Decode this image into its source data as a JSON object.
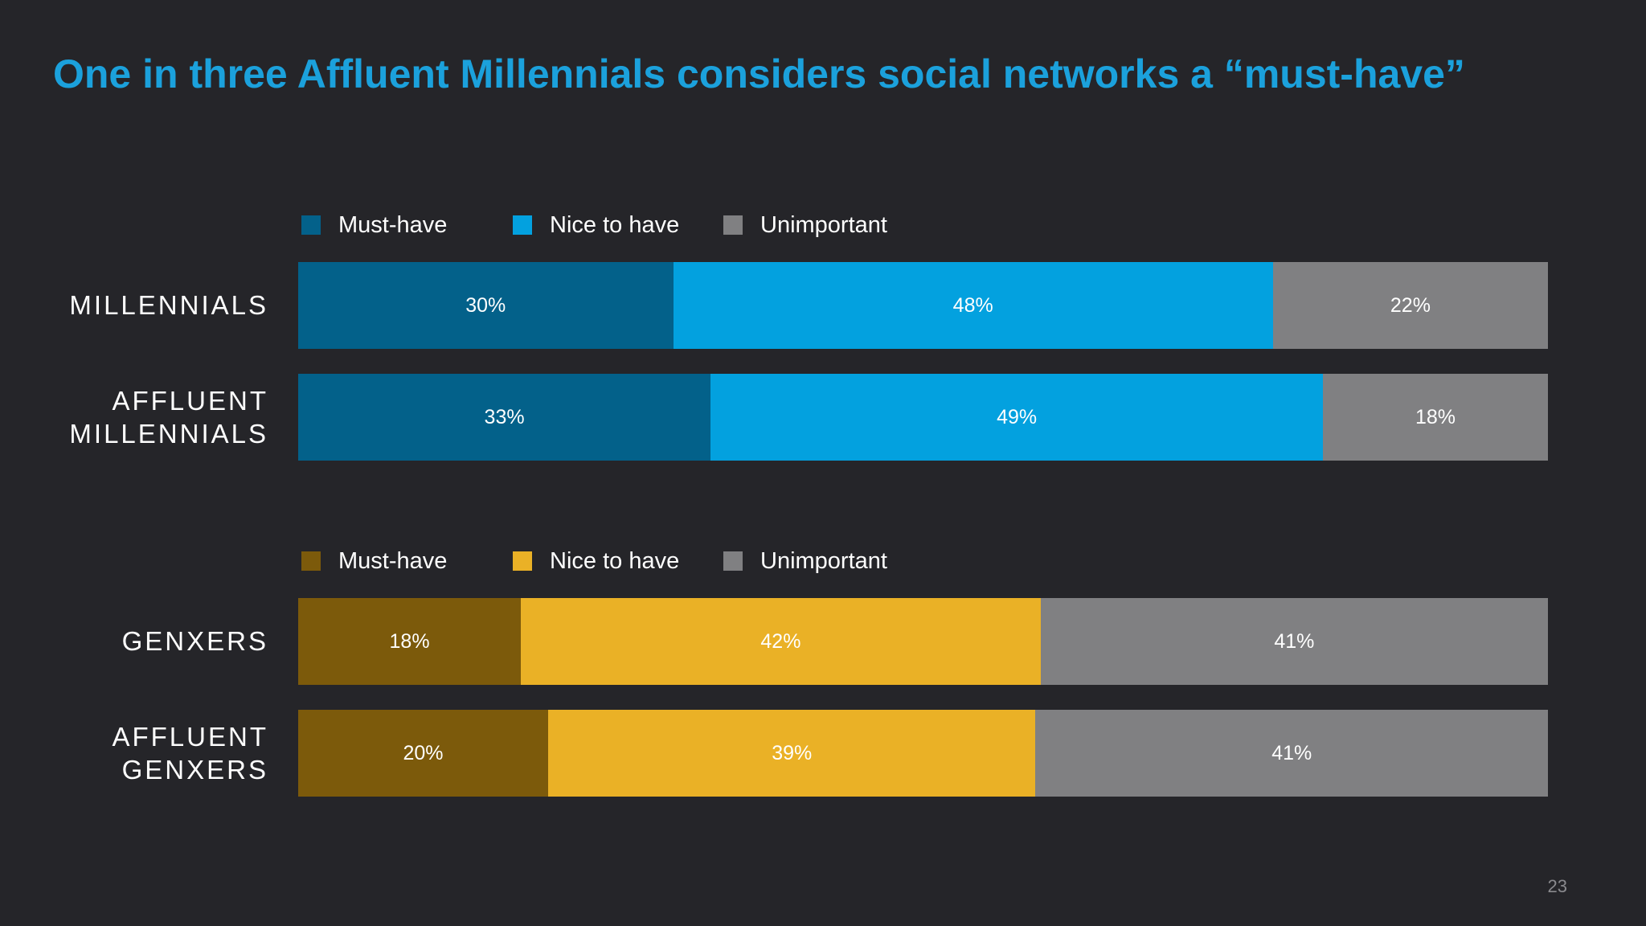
{
  "title": "One in three Affluent Millennials considers social networks a “must-have”",
  "page_number": "23",
  "colors": {
    "background": "#252529",
    "title": "#1ba1dc",
    "unimportant": "#808082"
  },
  "chart_data": [
    {
      "type": "bar",
      "orientation": "horizontal",
      "stacked": true,
      "normalized_to_percent": true,
      "categories": [
        "MILLENNIALS",
        "AFFLUENT\nMILLENNIALS"
      ],
      "series": [
        {
          "name": "Must-have",
          "color": "#03618a",
          "values": [
            30,
            33
          ],
          "labels": [
            "30%",
            "33%"
          ]
        },
        {
          "name": "Nice to have",
          "color": "#03a1df",
          "values": [
            48,
            49
          ],
          "labels": [
            "48%",
            "49%"
          ]
        },
        {
          "name": "Unimportant",
          "color": "#808082",
          "values": [
            22,
            18
          ],
          "labels": [
            "22%",
            "18%"
          ]
        }
      ],
      "legend_position": "top-left",
      "grid": false
    },
    {
      "type": "bar",
      "orientation": "horizontal",
      "stacked": true,
      "normalized_to_percent": true,
      "categories": [
        "GENXERS",
        "AFFLUENT\nGENXERS"
      ],
      "series": [
        {
          "name": "Must-have",
          "color": "#7c5a0b",
          "values": [
            18,
            20
          ],
          "labels": [
            "18%",
            "20%"
          ]
        },
        {
          "name": "Nice to have",
          "color": "#eab126",
          "values": [
            42,
            39
          ],
          "labels": [
            "42%",
            "39%"
          ]
        },
        {
          "name": "Unimportant",
          "color": "#808082",
          "values": [
            41,
            41
          ],
          "labels": [
            "41%",
            "41%"
          ]
        }
      ],
      "legend_position": "top-left",
      "grid": false
    }
  ]
}
